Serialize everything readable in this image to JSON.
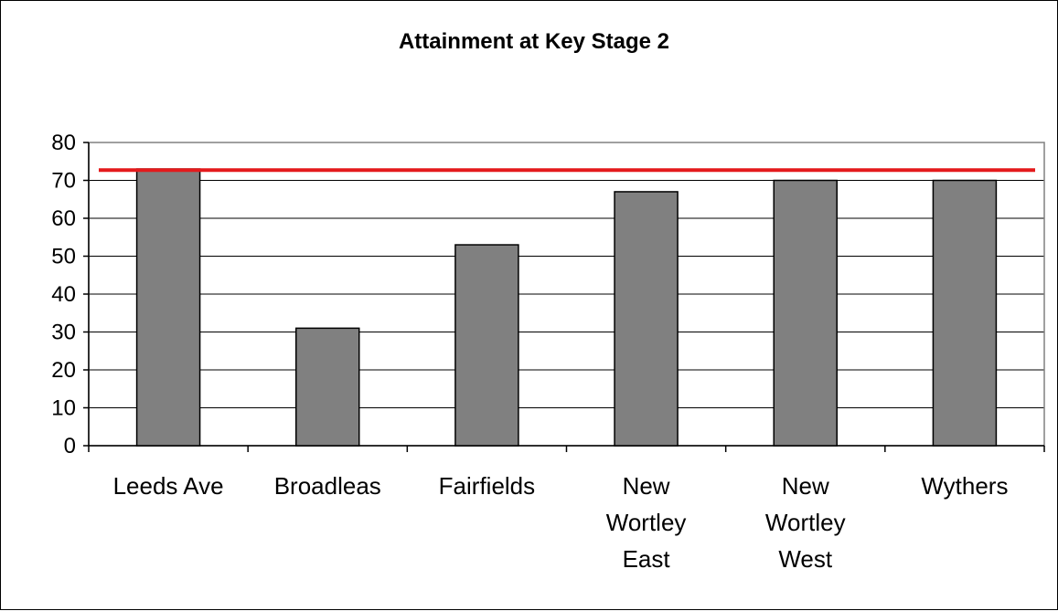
{
  "chart_data": {
    "type": "bar",
    "title": "Attainment at Key Stage 2",
    "xlabel": "",
    "ylabel": "",
    "categories": [
      "Leeds Ave",
      "Broadleas",
      "Fairfields",
      "New Wortley East",
      "New Wortley West",
      "Wythers"
    ],
    "category_lines": [
      [
        "Leeds Ave"
      ],
      [
        "Broadleas"
      ],
      [
        "Fairfields"
      ],
      [
        "New",
        "Wortley",
        "East"
      ],
      [
        "New",
        "Wortley",
        "West"
      ],
      [
        "Wythers"
      ]
    ],
    "values": [
      73,
      31,
      53,
      67,
      70,
      70
    ],
    "ylim": [
      0,
      80
    ],
    "yticks": [
      0,
      10,
      20,
      30,
      40,
      50,
      60,
      70,
      80
    ],
    "grid": true,
    "legend": "none",
    "reference_line": {
      "value": 72.7,
      "color": "#E41A1C"
    },
    "colors": {
      "bar": "#808080",
      "bar_stroke": "#000000",
      "plot_border": "#808080",
      "grid": "#000000"
    }
  }
}
